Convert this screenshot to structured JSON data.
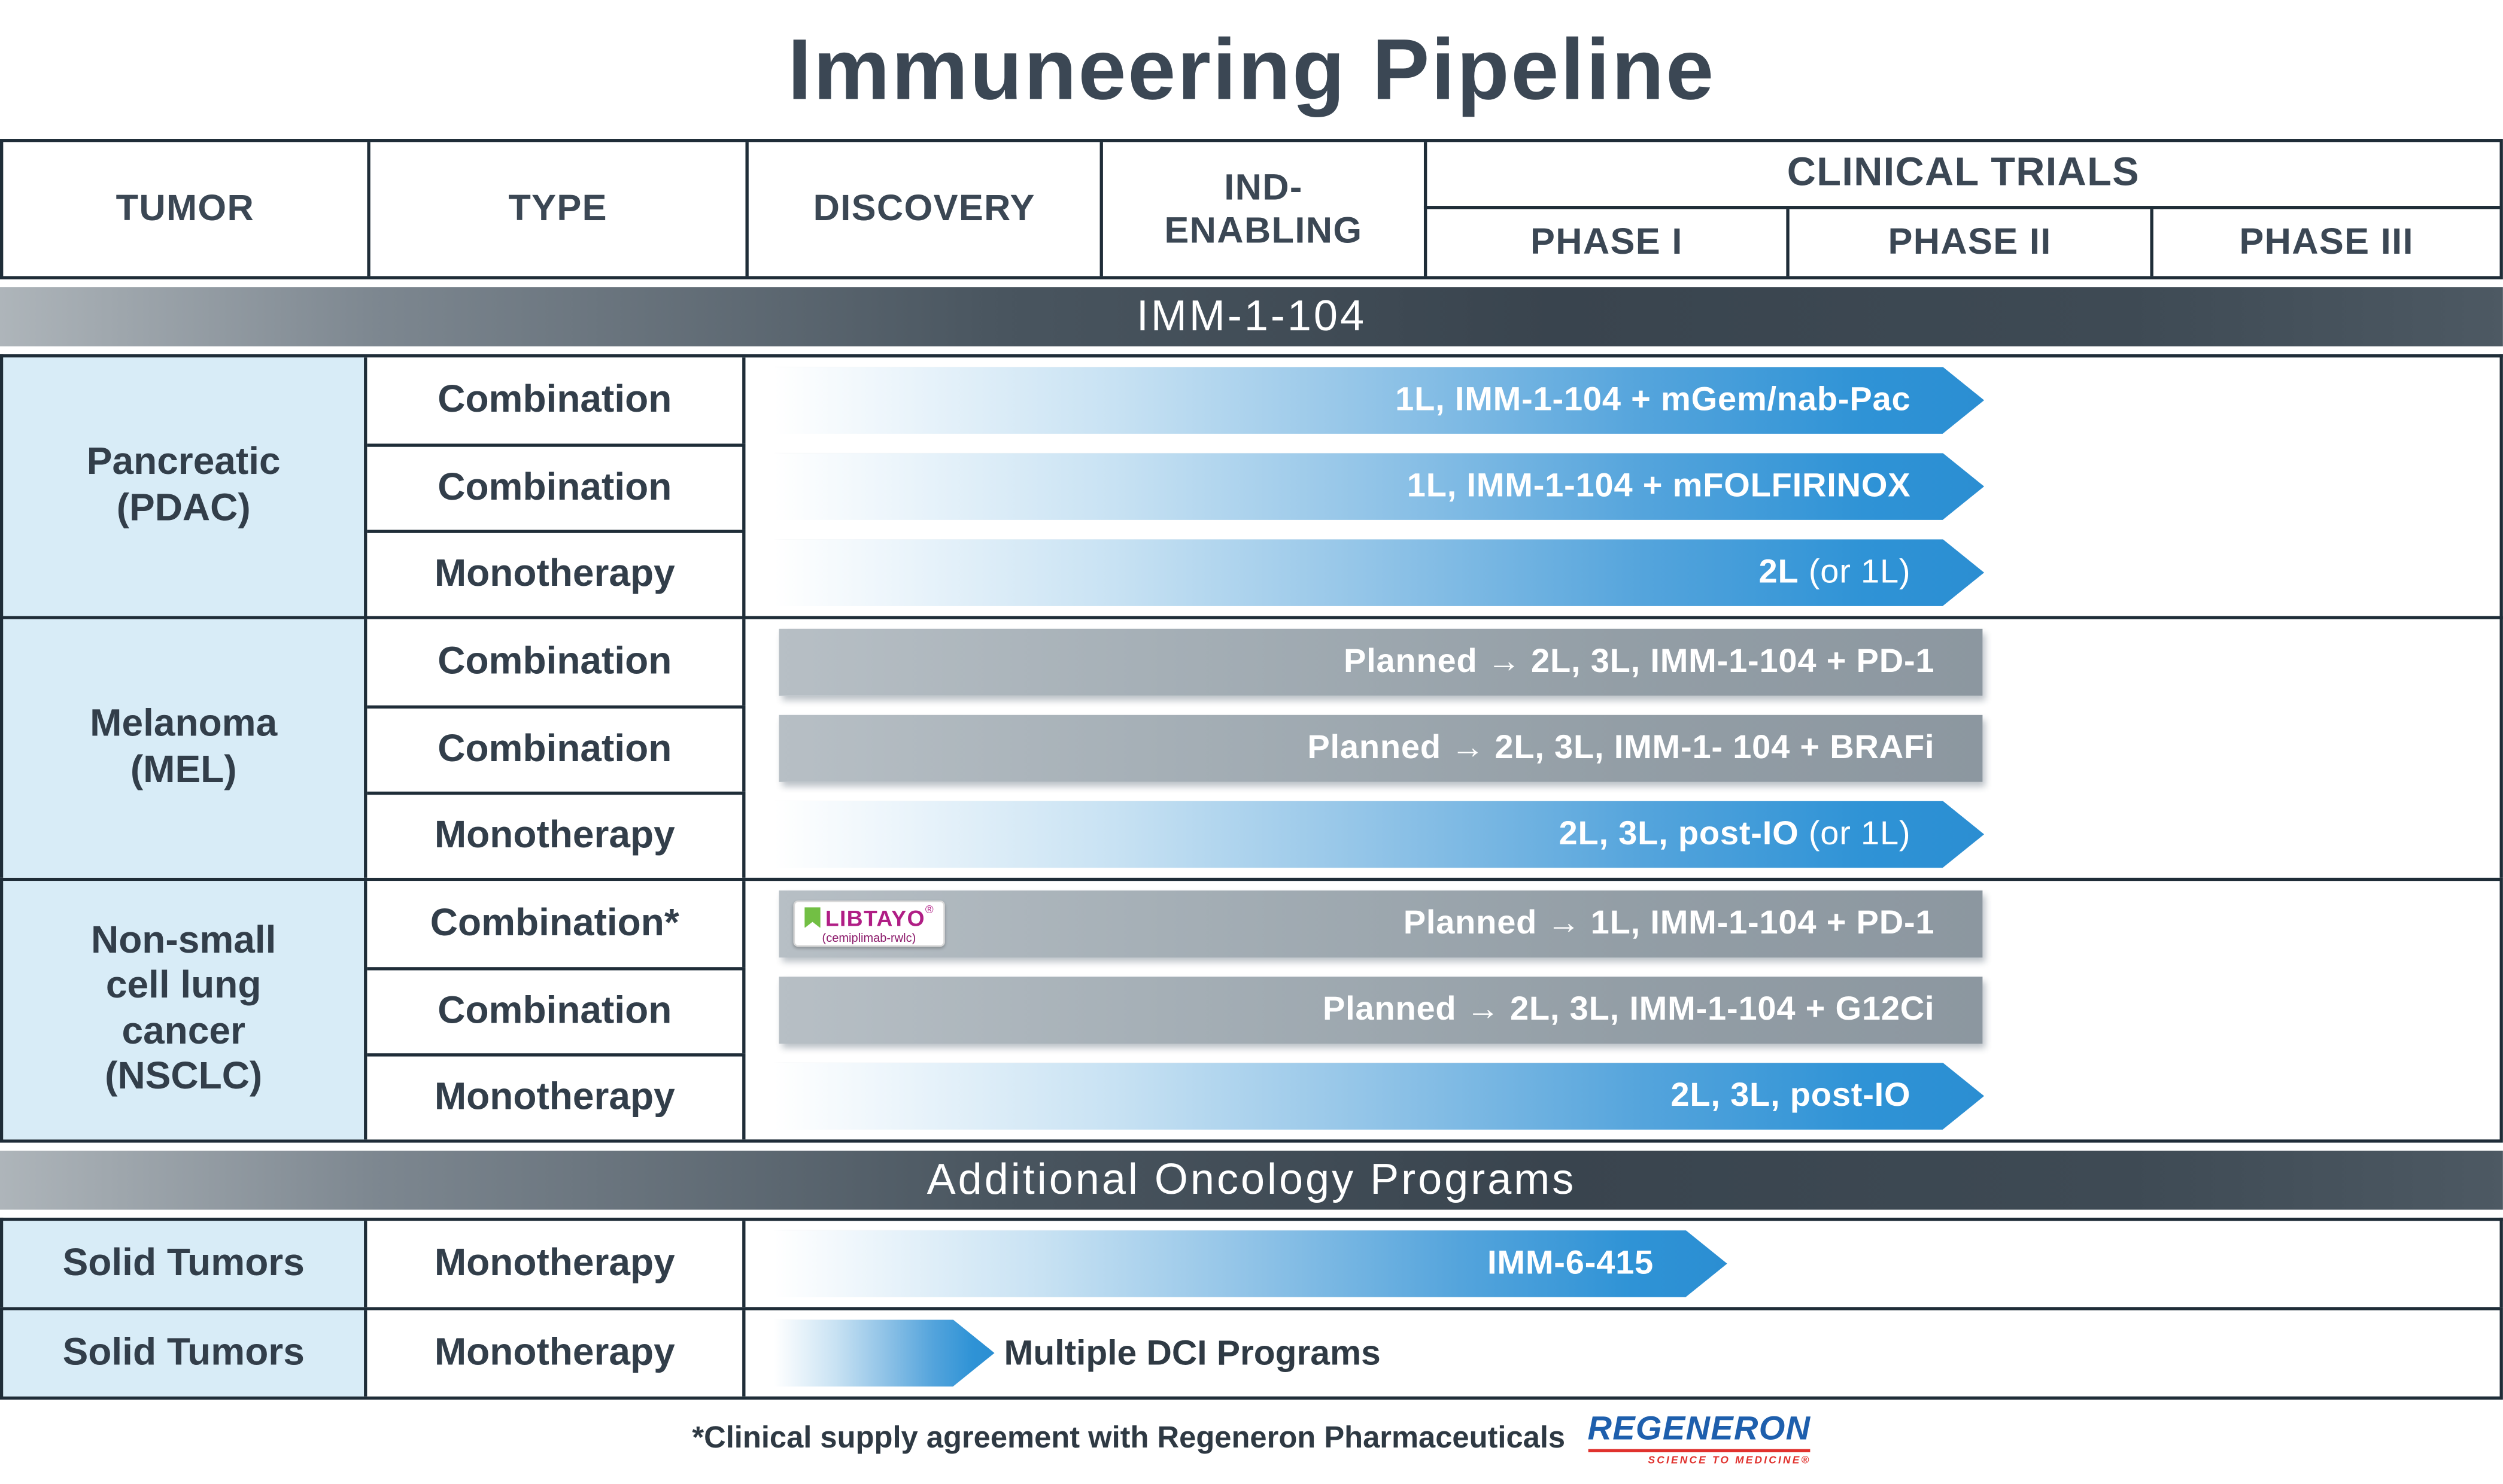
{
  "title": "Immuneering Pipeline",
  "header": {
    "tumor": "TUMOR",
    "type": "TYPE",
    "discovery": "DISCOVERY",
    "ind1": "IND-",
    "ind2": "ENABLING",
    "clinical": "CLINICAL TRIALS",
    "p1": "PHASE I",
    "p2": "PHASE II",
    "p3": "PHASE III"
  },
  "band1": "IMM-1-104",
  "band2": "Additional Oncology Programs",
  "groups": [
    {
      "tumor_lines": [
        "Pancreatic",
        "(PDAC)"
      ],
      "rows": [
        {
          "type": "Combination",
          "bar": "1L, IMM-1-104 + mGem/nab-Pac"
        },
        {
          "type": "Combination",
          "bar": "1L, IMM-1-104 + mFOLFIRINOX"
        },
        {
          "type": "Monotherapy",
          "bar": "2L",
          "bar_suffix": " (or 1L)"
        }
      ]
    },
    {
      "tumor_lines": [
        "Melanoma",
        "(MEL)"
      ],
      "rows": [
        {
          "type": "Combination",
          "bar": "Planned → 2L, 3L, IMM-1-104 + PD-1"
        },
        {
          "type": "Combination",
          "bar": "Planned → 2L, 3L, IMM-1- 104 + BRAFi"
        },
        {
          "type": "Monotherapy",
          "bar": "2L, 3L, post-IO",
          "bar_suffix": " (or 1L)"
        }
      ]
    },
    {
      "tumor_lines": [
        "Non-small",
        "cell lung",
        "cancer",
        "(NSCLC)"
      ],
      "rows": [
        {
          "type": "Combination*",
          "bar": "Planned → 1L, IMM-1-104 + PD-1",
          "logo": {
            "name": "LIBTAYO",
            "reg": "®",
            "sub": "(cemiplimab-rwlc)"
          }
        },
        {
          "type": "Combination",
          "bar": "Planned → 2L, 3L, IMM-1-104 + G12Ci"
        },
        {
          "type": "Monotherapy",
          "bar": "2L, 3L, post-IO"
        }
      ]
    },
    {
      "tumor_lines": [
        "Solid Tumors"
      ],
      "rows": [
        {
          "type": "Monotherapy",
          "bar": "IMM-6-415"
        }
      ]
    },
    {
      "tumor_lines": [
        "Solid Tumors"
      ],
      "rows": [
        {
          "type": "Monotherapy",
          "bar_outside": "Multiple DCI Programs"
        }
      ]
    }
  ],
  "footnote": {
    "text": "*Clinical supply agreement with Regeneron Pharmaceuticals",
    "logo": "REGENERON",
    "tagline": "SCIENCE TO MEDICINE®"
  },
  "colors": {
    "accent_blue": "#2b8ed2",
    "planned_gray": "#98a2aa",
    "dark_slate": "#36424d",
    "light_blue_cell": "#d8ecf7",
    "libtayo_magenta": "#b01e85",
    "libtayo_green": "#72bf44",
    "regeneron_blue": "#1e5fad",
    "regeneron_red": "#e0312d"
  },
  "chart_data": {
    "type": "table",
    "title": "Immuneering Pipeline",
    "stages": [
      "Discovery",
      "IND-Enabling",
      "Phase I",
      "Phase II",
      "Phase III"
    ],
    "sections": [
      "IMM-1-104",
      "Additional Oncology Programs"
    ],
    "programs": [
      {
        "section": "IMM-1-104",
        "tumor": "Pancreatic (PDAC)",
        "type": "Combination",
        "label": "1L, IMM-1-104 + mGem/nab-Pac",
        "status": "active",
        "stage_reached": "Phase II"
      },
      {
        "section": "IMM-1-104",
        "tumor": "Pancreatic (PDAC)",
        "type": "Combination",
        "label": "1L, IMM-1-104 + mFOLFIRINOX",
        "status": "active",
        "stage_reached": "Phase II"
      },
      {
        "section": "IMM-1-104",
        "tumor": "Pancreatic (PDAC)",
        "type": "Monotherapy",
        "label": "2L (or 1L)",
        "status": "active",
        "stage_reached": "Phase II"
      },
      {
        "section": "IMM-1-104",
        "tumor": "Melanoma (MEL)",
        "type": "Combination",
        "label": "Planned → 2L, 3L, IMM-1-104 + PD-1",
        "status": "planned",
        "stage_reached": "Phase II"
      },
      {
        "section": "IMM-1-104",
        "tumor": "Melanoma (MEL)",
        "type": "Combination",
        "label": "Planned → 2L, 3L, IMM-1- 104 + BRAFi",
        "status": "planned",
        "stage_reached": "Phase II"
      },
      {
        "section": "IMM-1-104",
        "tumor": "Melanoma (MEL)",
        "type": "Monotherapy",
        "label": "2L, 3L, post-IO (or 1L)",
        "status": "active",
        "stage_reached": "Phase II"
      },
      {
        "section": "IMM-1-104",
        "tumor": "Non-small cell lung cancer (NSCLC)",
        "type": "Combination*",
        "label": "Planned → 1L, IMM-1-104 + PD-1",
        "partner_logo": "LIBTAYO (cemiplimab-rwlc)",
        "status": "planned",
        "stage_reached": "Phase II"
      },
      {
        "section": "IMM-1-104",
        "tumor": "Non-small cell lung cancer (NSCLC)",
        "type": "Combination",
        "label": "Planned → 2L, 3L, IMM-1-104 + G12Ci",
        "status": "planned",
        "stage_reached": "Phase II"
      },
      {
        "section": "IMM-1-104",
        "tumor": "Non-small cell lung cancer (NSCLC)",
        "type": "Monotherapy",
        "label": "2L, 3L, post-IO",
        "status": "active",
        "stage_reached": "Phase II"
      },
      {
        "section": "Additional Oncology Programs",
        "tumor": "Solid Tumors",
        "type": "Monotherapy",
        "label": "IMM-6-415",
        "status": "active",
        "stage_reached": "Phase I"
      },
      {
        "section": "Additional Oncology Programs",
        "tumor": "Solid Tumors",
        "type": "Monotherapy",
        "label": "Multiple DCI Programs",
        "status": "active",
        "stage_reached": "Discovery"
      }
    ]
  }
}
